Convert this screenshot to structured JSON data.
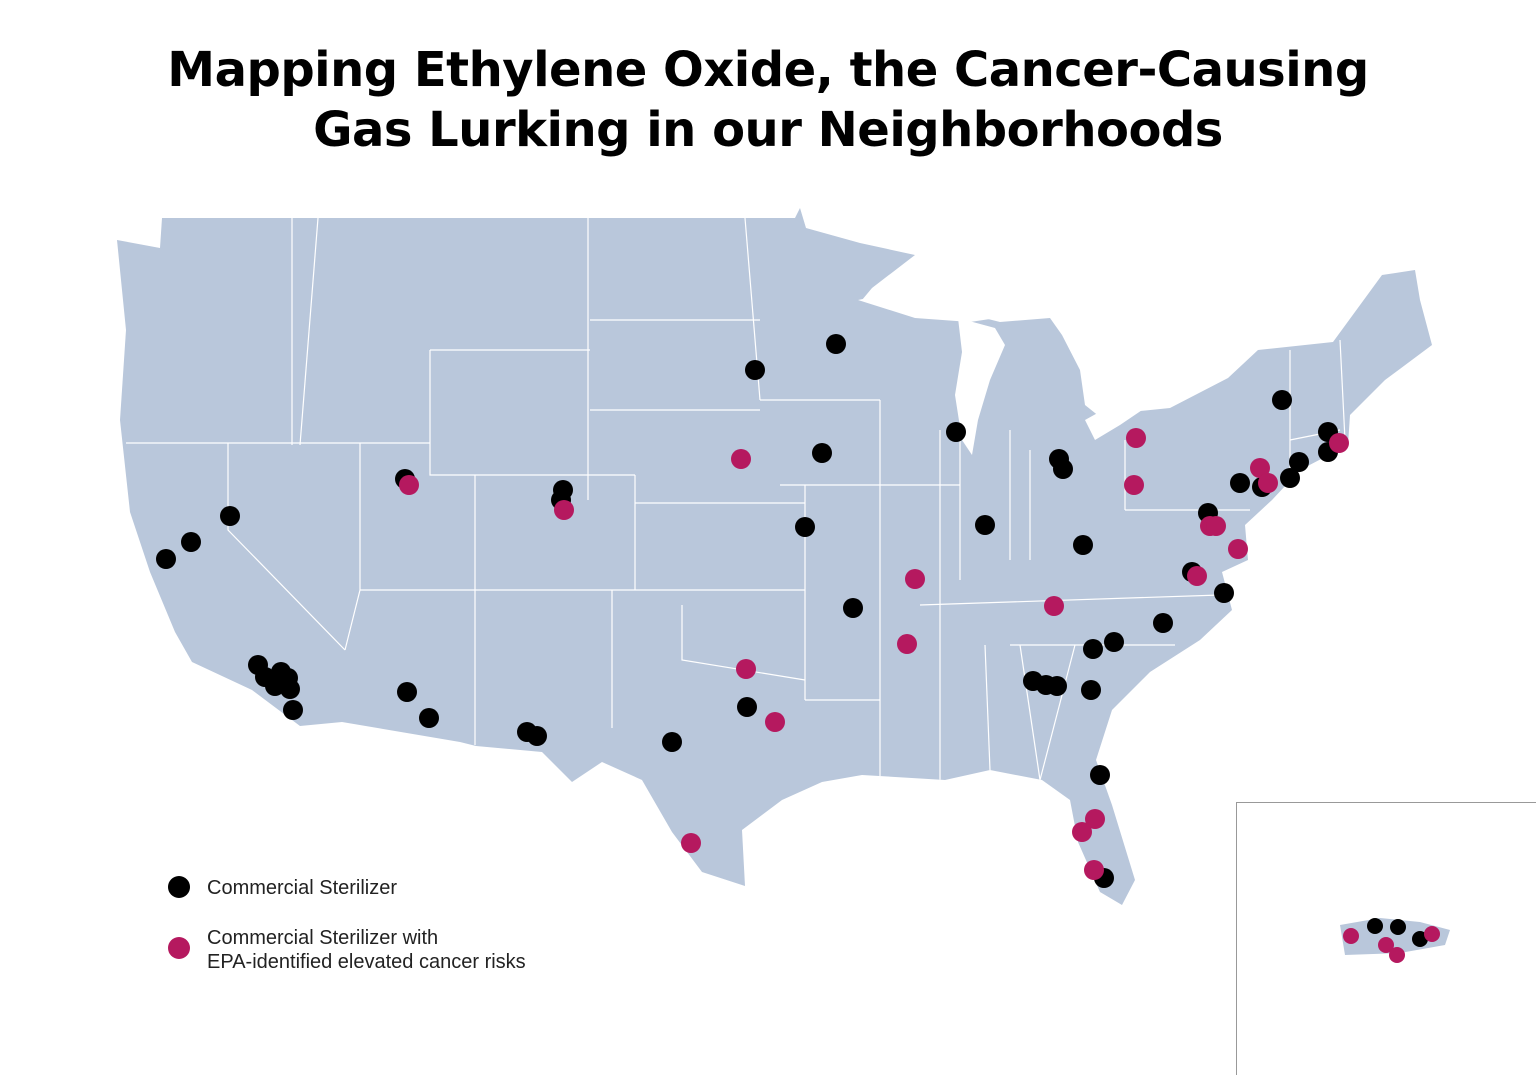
{
  "title": {
    "line1": "Mapping Ethylene Oxide, the Cancer-Causing",
    "line2": "Gas Lurking in our Neighborhoods"
  },
  "colors": {
    "land": "#b9c7db",
    "border": "#ffffff",
    "sterilizer": "#000000",
    "elevated_risk": "#b5195f"
  },
  "legend": [
    {
      "label_line1": "Commercial Sterilizer",
      "label_line2": "",
      "color": "#000000"
    },
    {
      "label_line1": "Commercial Sterilizer with",
      "label_line2": "EPA-identified elevated cancer risks",
      "color": "#b5195f"
    }
  ],
  "map": {
    "region": "Contiguous United States",
    "inset": "Puerto Rico"
  }
}
